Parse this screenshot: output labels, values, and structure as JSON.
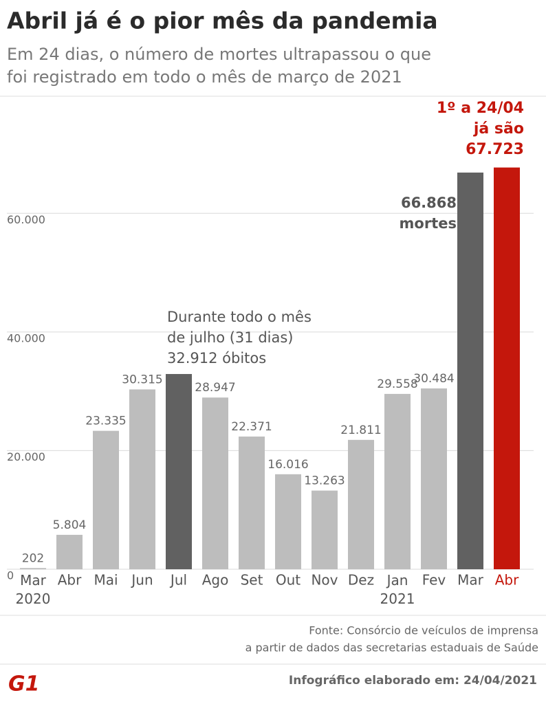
{
  "header": {
    "title": "Abril já é o pior mês da pandemia",
    "subtitle": [
      "Em 24 dias, o número de mortes ultrapassou o que",
      "foi registrado em todo o mês de março de 2021"
    ]
  },
  "chart_data": {
    "type": "bar",
    "categories": [
      "Mar 2020",
      "Abr",
      "Mai",
      "Jun",
      "Jul",
      "Ago",
      "Set",
      "Out",
      "Nov",
      "Dez",
      "Jan 2021",
      "Fev",
      "Mar",
      "Abr"
    ],
    "values": [
      202,
      5804,
      23335,
      30315,
      32912,
      28947,
      22371,
      16016,
      13263,
      21811,
      29558,
      30484,
      66868,
      67723
    ],
    "value_labels": [
      "202",
      "5.804",
      "23.335",
      "30.315",
      null,
      "28.947",
      "22.371",
      "16.016",
      "13.263",
      "21.811",
      "29.558",
      "30.484",
      null,
      null
    ],
    "colors": [
      "#bdbdbd",
      "#bdbdbd",
      "#bdbdbd",
      "#bdbdbd",
      "#616161",
      "#bdbdbd",
      "#bdbdbd",
      "#bdbdbd",
      "#bdbdbd",
      "#bdbdbd",
      "#bdbdbd",
      "#bdbdbd",
      "#616161",
      "#c4170c"
    ],
    "category_colors": [
      "#555555",
      "#555555",
      "#555555",
      "#555555",
      "#555555",
      "#555555",
      "#555555",
      "#555555",
      "#555555",
      "#555555",
      "#555555",
      "#555555",
      "#555555",
      "#c4170c"
    ],
    "ylim": [
      0,
      70000
    ],
    "yticks": [
      {
        "value": 0,
        "label": "0"
      },
      {
        "value": 20000,
        "label": "20.000"
      },
      {
        "value": 40000,
        "label": "40.000"
      },
      {
        "value": 60000,
        "label": "60.000"
      }
    ],
    "grid": true,
    "annotations": [
      "Durante todo o mês\nde julho (31 dias)\n32.912 óbitos",
      "66.868\nmortes",
      "1º a 24/04\njá são\n67.723"
    ]
  },
  "footer": {
    "source": [
      "Fonte: Consórcio de veículos de imprensa",
      "a partir de dados das secretarias estaduais de Saúde"
    ],
    "logo": "G1",
    "date": "Infográfico elaborado em: 24/04/2021"
  }
}
